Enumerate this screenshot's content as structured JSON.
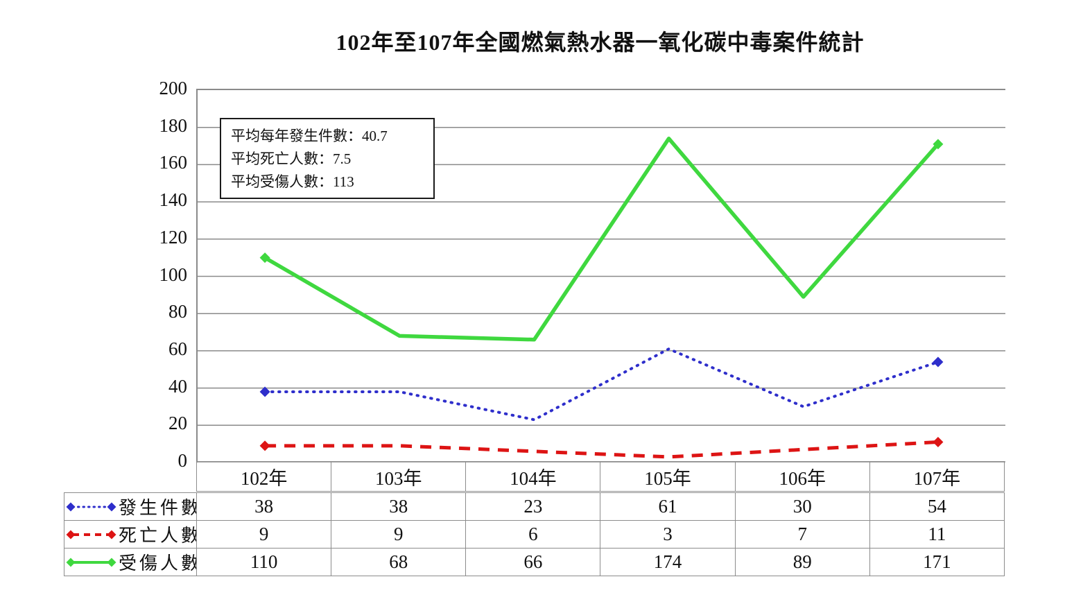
{
  "title": "102年至107年全國燃氣熱水器一氧化碳中毒案件統計",
  "annotation": {
    "lines": [
      "平均每年發生件數：40.7",
      "平均死亡人數：7.5",
      "平均受傷人數：113"
    ]
  },
  "chart_data": {
    "type": "line",
    "title": "102年至107年全國燃氣熱水器一氧化碳中毒案件統計",
    "categories": [
      "102年",
      "103年",
      "104年",
      "105年",
      "106年",
      "107年"
    ],
    "series": [
      {
        "name": "發生件數",
        "values": [
          38,
          38,
          23,
          61,
          30,
          54
        ],
        "color": "#2e2ecb",
        "line_style": "dotted",
        "marker": "diamond"
      },
      {
        "name": "死亡人數",
        "values": [
          9,
          9,
          6,
          3,
          7,
          11
        ],
        "color": "#dd1414",
        "line_style": "dashed",
        "marker": "diamond"
      },
      {
        "name": "受傷人數",
        "values": [
          110,
          68,
          66,
          174,
          89,
          171
        ],
        "color": "#3fd83f",
        "line_style": "solid",
        "marker": "diamond"
      }
    ],
    "ylim": [
      0,
      200
    ],
    "ytick_step": 20,
    "xlabel": "",
    "ylabel": "",
    "grid": "horizontal",
    "legend_position": "table-left",
    "grid_color": "#8a8a8a"
  }
}
